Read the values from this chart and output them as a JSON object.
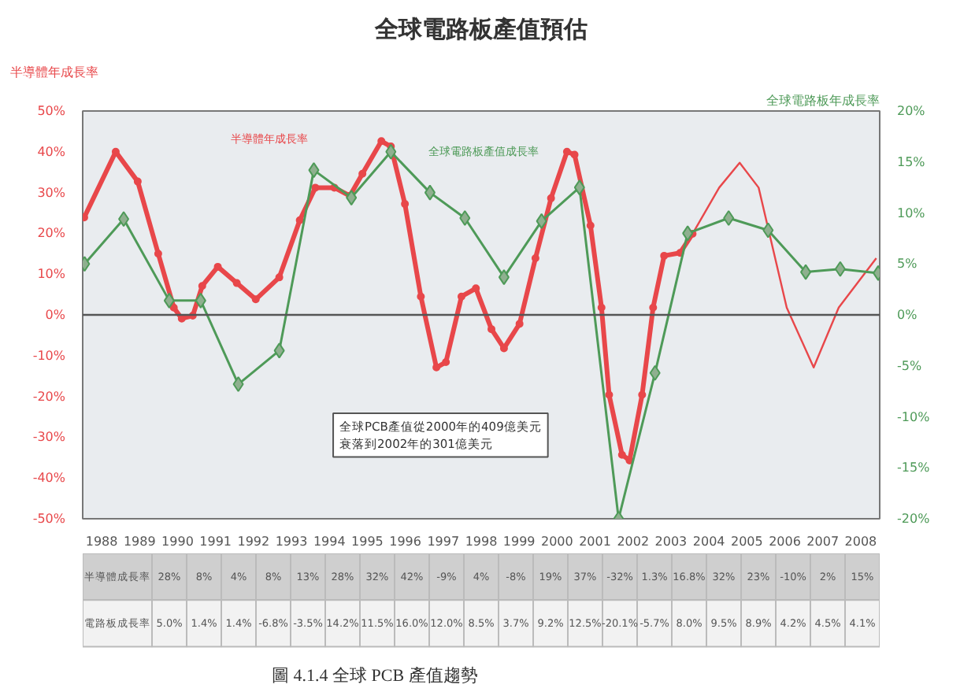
{
  "chart_data": [
    {
      "type": "line",
      "title": "全球電路板產值預估",
      "ylabel": "半導體年成長率",
      "y2label": "全球電路板年成長率",
      "xlim": [
        1987.5,
        2008.5
      ],
      "xticks": [
        1988,
        1989,
        1990,
        1991,
        1992,
        1993,
        1994,
        1995,
        1996,
        1997,
        1998,
        1999,
        2000,
        2001,
        2002,
        2003,
        2004,
        2005,
        2006,
        2007,
        2008
      ],
      "ylim": [
        -50,
        50
      ],
      "yticks": [
        {
          "value": -50,
          "label": "-50%"
        },
        {
          "value": -40,
          "label": "-40%"
        },
        {
          "value": -30,
          "label": "-30%"
        },
        {
          "value": -20,
          "label": "-20%"
        },
        {
          "value": -10,
          "label": "-10%"
        },
        {
          "value": 0,
          "label": "0%"
        },
        {
          "value": 10,
          "label": "10%"
        },
        {
          "value": 20,
          "label": "20%"
        },
        {
          "value": 30,
          "label": "30%"
        },
        {
          "value": 40,
          "label": "40%"
        },
        {
          "value": 50,
          "label": "50%"
        }
      ],
      "y2lim": [
        -20,
        20
      ],
      "y2ticks": [
        {
          "value": -20,
          "label": "-20%"
        },
        {
          "value": -15,
          "label": "-15%"
        },
        {
          "value": -10,
          "label": "-10%"
        },
        {
          "value": -5,
          "label": "-5%"
        },
        {
          "value": 0,
          "label": "0%"
        },
        {
          "value": 5,
          "label": "5%"
        },
        {
          "value": 10,
          "label": "10%"
        },
        {
          "value": 15,
          "label": "15%"
        },
        {
          "value": 20,
          "label": "20%"
        }
      ],
      "grid": false,
      "ref_lines": [
        {
          "axis": "y",
          "value": 0,
          "color": "#555555"
        }
      ],
      "series": [
        {
          "name": "半導體年成長率",
          "color": "#e8474a",
          "marker": "circle",
          "x": [
            1987.54,
            1988.37,
            1988.95,
            1989.49,
            1989.9,
            1990.11,
            1990.4,
            1990.65,
            1991.06,
            1991.56,
            1992.06,
            1992.68,
            1993.22,
            1993.63,
            1994.13,
            1994.54,
            1994.87,
            1995.37,
            1995.62,
            1995.99,
            1996.41,
            1996.82,
            1997.07,
            1997.48,
            1997.86,
            1998.27,
            1998.6,
            1999.01,
            1999.43,
            1999.84,
            2000.26,
            2000.46,
            2000.88,
            2001.17,
            2001.37,
            2001.71,
            2001.91,
            2002.24,
            2002.53,
            2002.82,
            2003.24,
            2003.57
          ],
          "values": [
            23.9,
            40,
            32.7,
            15,
            1.8,
            -0.9,
            -0.2,
            7.1,
            11.8,
            7.8,
            3.8,
            9.2,
            23.2,
            31.2,
            31.2,
            29.2,
            34.6,
            42.6,
            41.3,
            27.2,
            4.5,
            -12.9,
            -11.6,
            4.5,
            6.5,
            -3.5,
            -8.2,
            -2.2,
            13.9,
            28.6,
            40,
            39.3,
            21.9,
            1.8,
            -19.6,
            -34.3,
            -35.7,
            -19.6,
            1.8,
            14.5,
            15.2,
            19.9
          ]
        },
        {
          "color": "#e8474a",
          "marker": "none",
          "x": [
            2003.57,
            2004.27,
            2004.81,
            2005.31,
            2006.05,
            2006.76,
            2007.42,
            2008.41
          ],
          "values": [
            19.9,
            31.2,
            37.3,
            31.2,
            1.8,
            -12.9,
            1.8,
            13.9
          ]
        },
        {
          "name": "全球電路板產值成長率",
          "color": "#4e9a58",
          "marker": "diamond",
          "axis": "y2",
          "x": [
            1987.55,
            1988.58,
            1989.78,
            1990.61,
            1991.6,
            1992.68,
            1993.59,
            1994.58,
            1995.62,
            1996.65,
            1997.57,
            1998.6,
            1999.59,
            2000.59,
            2001.62,
            2002.58,
            2003.44,
            2004.52,
            2005.56,
            2006.55,
            2007.46,
            2008.46
          ],
          "values": [
            5.0,
            9.4,
            1.4,
            1.4,
            -6.8,
            -3.5,
            14.2,
            11.5,
            16.0,
            12.0,
            9.5,
            3.7,
            9.2,
            12.5,
            -20.0,
            -5.7,
            8.0,
            9.5,
            8.3,
            4.2,
            4.5,
            4.1
          ]
        }
      ],
      "annotations": [
        "全球PCB產值從2000年的409億美元",
        "衰落到2002年的301億美元"
      ]
    },
    {
      "type": "other",
      "categories": [
        "1988",
        "1989",
        "1990",
        "1991",
        "1992",
        "1993",
        "1994",
        "1995",
        "1996",
        "1997",
        "1998",
        "1999",
        "2000",
        "2001",
        "2002",
        "2003",
        "2004",
        "2005",
        "2006",
        "2007",
        "2008"
      ],
      "y_categories": [
        "半導體成長率",
        "電路板成長率"
      ],
      "cell_labels": [
        [
          "28%",
          "8%",
          "4%",
          "8%",
          "13%",
          "28%",
          "32%",
          "42%",
          "-9%",
          "4%",
          "-8%",
          "19%",
          "37%",
          "-32%",
          "1.3%",
          "16.8%",
          "32%",
          "23%",
          "-10%",
          "2%",
          "15%"
        ],
        [
          "5.0%",
          "1.4%",
          "1.4%",
          "-6.8%",
          "-3.5%",
          "14.2%",
          "11.5%",
          "16.0%",
          "12.0%",
          "8.5%",
          "3.7%",
          "9.2%",
          "12.5%",
          "-20.1%",
          "-5.7%",
          "8.0%",
          "9.5%",
          "8.9%",
          "4.2%",
          "4.5%",
          "4.1%"
        ]
      ],
      "annotations": [
        "圖 4.1.4 全球 PCB 產值趨勢"
      ]
    }
  ]
}
